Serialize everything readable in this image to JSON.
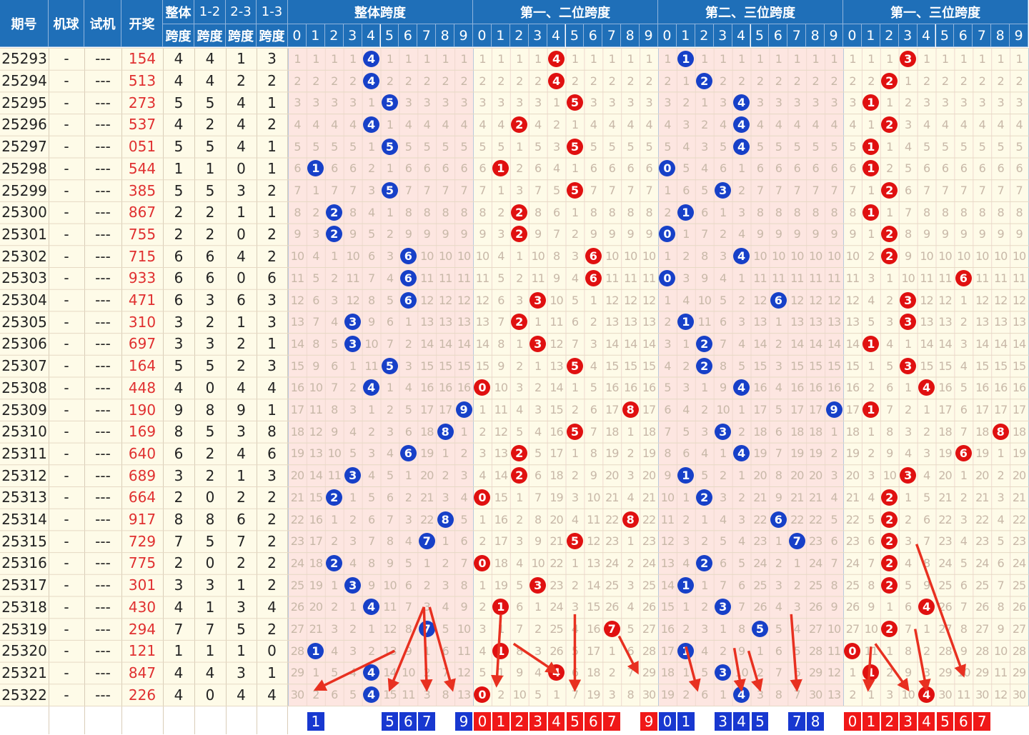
{
  "headers": {
    "issue": "期号",
    "machine": "机球",
    "trial": "试机",
    "draw": "开奖",
    "span_top": "整体",
    "span_bottom": "跨度",
    "p12_top": "1-2",
    "p23_top": "2-3",
    "p13_top": "1-3",
    "sub_bottom": "跨度",
    "groups": [
      "整体跨度",
      "第一、二位跨度",
      "第二、三位跨度",
      "第一、三位跨度"
    ],
    "digits": [
      "0",
      "1",
      "2",
      "3",
      "4",
      "5",
      "6",
      "7",
      "8",
      "9"
    ]
  },
  "chart_data": {
    "type": "table",
    "rows": [
      {
        "issue": "25293",
        "machine": "-",
        "trial": "---",
        "draw": "154",
        "span": "4",
        "s12": "4",
        "s23": "1",
        "s13": "3"
      },
      {
        "issue": "25294",
        "machine": "-",
        "trial": "---",
        "draw": "513",
        "span": "4",
        "s12": "4",
        "s23": "2",
        "s13": "2"
      },
      {
        "issue": "25295",
        "machine": "-",
        "trial": "---",
        "draw": "273",
        "span": "5",
        "s12": "5",
        "s23": "4",
        "s13": "1"
      },
      {
        "issue": "25296",
        "machine": "-",
        "trial": "---",
        "draw": "537",
        "span": "4",
        "s12": "2",
        "s23": "4",
        "s13": "2"
      },
      {
        "issue": "25297",
        "machine": "-",
        "trial": "---",
        "draw": "051",
        "span": "5",
        "s12": "5",
        "s23": "4",
        "s13": "1"
      },
      {
        "issue": "25298",
        "machine": "-",
        "trial": "---",
        "draw": "544",
        "span": "1",
        "s12": "1",
        "s23": "0",
        "s13": "1"
      },
      {
        "issue": "25299",
        "machine": "-",
        "trial": "---",
        "draw": "385",
        "span": "5",
        "s12": "5",
        "s23": "3",
        "s13": "2"
      },
      {
        "issue": "25300",
        "machine": "-",
        "trial": "---",
        "draw": "867",
        "span": "2",
        "s12": "2",
        "s23": "1",
        "s13": "1"
      },
      {
        "issue": "25301",
        "machine": "-",
        "trial": "---",
        "draw": "755",
        "span": "2",
        "s12": "2",
        "s23": "0",
        "s13": "2"
      },
      {
        "issue": "25302",
        "machine": "-",
        "trial": "---",
        "draw": "715",
        "span": "6",
        "s12": "6",
        "s23": "4",
        "s13": "2"
      },
      {
        "issue": "25303",
        "machine": "-",
        "trial": "---",
        "draw": "933",
        "span": "6",
        "s12": "6",
        "s23": "0",
        "s13": "6"
      },
      {
        "issue": "25304",
        "machine": "-",
        "trial": "---",
        "draw": "471",
        "span": "6",
        "s12": "3",
        "s23": "6",
        "s13": "3"
      },
      {
        "issue": "25305",
        "machine": "-",
        "trial": "---",
        "draw": "310",
        "span": "3",
        "s12": "2",
        "s23": "1",
        "s13": "3"
      },
      {
        "issue": "25306",
        "machine": "-",
        "trial": "---",
        "draw": "697",
        "span": "3",
        "s12": "3",
        "s23": "2",
        "s13": "1"
      },
      {
        "issue": "25307",
        "machine": "-",
        "trial": "---",
        "draw": "164",
        "span": "5",
        "s12": "5",
        "s23": "2",
        "s13": "3"
      },
      {
        "issue": "25308",
        "machine": "-",
        "trial": "---",
        "draw": "448",
        "span": "4",
        "s12": "0",
        "s23": "4",
        "s13": "4"
      },
      {
        "issue": "25309",
        "machine": "-",
        "trial": "---",
        "draw": "190",
        "span": "9",
        "s12": "8",
        "s23": "9",
        "s13": "1"
      },
      {
        "issue": "25310",
        "machine": "-",
        "trial": "---",
        "draw": "169",
        "span": "8",
        "s12": "5",
        "s23": "3",
        "s13": "8"
      },
      {
        "issue": "25311",
        "machine": "-",
        "trial": "---",
        "draw": "640",
        "span": "6",
        "s12": "2",
        "s23": "4",
        "s13": "6"
      },
      {
        "issue": "25312",
        "machine": "-",
        "trial": "---",
        "draw": "689",
        "span": "3",
        "s12": "2",
        "s23": "1",
        "s13": "3"
      },
      {
        "issue": "25313",
        "machine": "-",
        "trial": "---",
        "draw": "664",
        "span": "2",
        "s12": "0",
        "s23": "2",
        "s13": "2"
      },
      {
        "issue": "25314",
        "machine": "-",
        "trial": "---",
        "draw": "917",
        "span": "8",
        "s12": "8",
        "s23": "6",
        "s13": "2"
      },
      {
        "issue": "25315",
        "machine": "-",
        "trial": "---",
        "draw": "729",
        "span": "7",
        "s12": "5",
        "s23": "7",
        "s13": "2"
      },
      {
        "issue": "25316",
        "machine": "-",
        "trial": "---",
        "draw": "775",
        "span": "2",
        "s12": "0",
        "s23": "2",
        "s13": "2"
      },
      {
        "issue": "25317",
        "machine": "-",
        "trial": "---",
        "draw": "301",
        "span": "3",
        "s12": "3",
        "s23": "1",
        "s13": "2"
      },
      {
        "issue": "25318",
        "machine": "-",
        "trial": "---",
        "draw": "430",
        "span": "4",
        "s12": "1",
        "s23": "3",
        "s13": "4"
      },
      {
        "issue": "25319",
        "machine": "-",
        "trial": "---",
        "draw": "294",
        "span": "7",
        "s12": "7",
        "s23": "5",
        "s13": "2"
      },
      {
        "issue": "25320",
        "machine": "-",
        "trial": "---",
        "draw": "121",
        "span": "1",
        "s12": "1",
        "s23": "1",
        "s13": "0"
      },
      {
        "issue": "25321",
        "machine": "-",
        "trial": "---",
        "draw": "847",
        "span": "4",
        "s12": "4",
        "s23": "3",
        "s13": "1"
      },
      {
        "issue": "25322",
        "machine": "-",
        "trial": "---",
        "draw": "226",
        "span": "4",
        "s12": "0",
        "s23": "4",
        "s13": "4"
      }
    ],
    "predictions": [
      [
        "1",
        "5",
        "6",
        "7",
        "9"
      ],
      [
        "0",
        "1",
        "2",
        "3",
        "4",
        "5",
        "6",
        "7",
        "9"
      ],
      [
        "0",
        "1",
        "3",
        "4",
        "5",
        "7",
        "8"
      ],
      [
        "0",
        "1",
        "2",
        "3",
        "4",
        "5",
        "6",
        "7"
      ]
    ]
  },
  "colors": {
    "header_bg": "#1f6fb8",
    "ball_blue": "#1740c8",
    "ball_red": "#e01010",
    "arrow_red": "#e83020",
    "cream": "#fefbe8",
    "pink": "#fde6e1"
  }
}
